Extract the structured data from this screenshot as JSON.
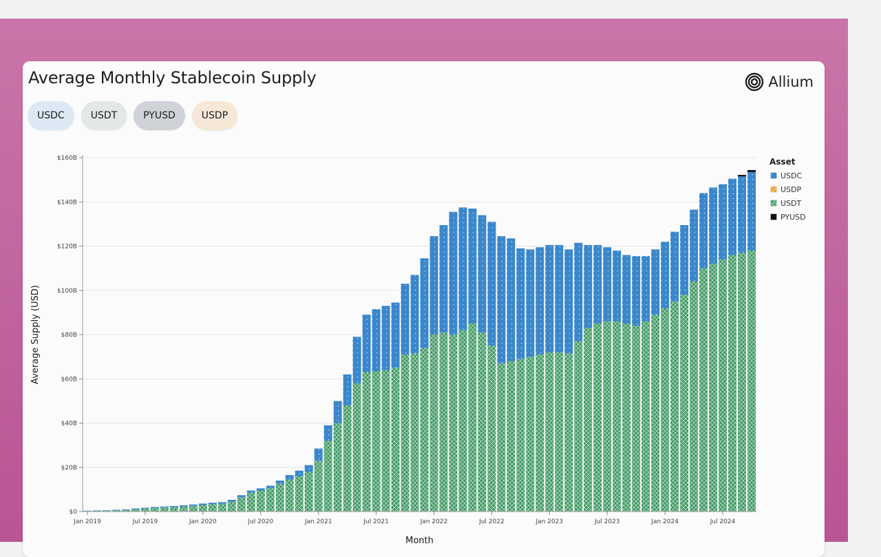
{
  "page": {
    "title": "Average Monthly Stablecoin Supply",
    "brand": "Allium"
  },
  "chips": [
    {
      "label": "USDC",
      "color": "#dce9f4"
    },
    {
      "label": "USDT",
      "color": "#e2e8e4"
    },
    {
      "label": "PYUSD",
      "color": "#cfd3d8"
    },
    {
      "label": "USDP",
      "color": "#f6e7d6"
    }
  ],
  "chart_data": {
    "type": "bar",
    "stacked": true,
    "xlabel": "Month",
    "ylabel": "Average Supply (USD)",
    "ylim": [
      0,
      160
    ],
    "y_ticks": [
      {
        "value": 0,
        "label": "$0"
      },
      {
        "value": 20,
        "label": "$20B"
      },
      {
        "value": 40,
        "label": "$40B"
      },
      {
        "value": 60,
        "label": "$60B"
      },
      {
        "value": 80,
        "label": "$80B"
      },
      {
        "value": 100,
        "label": "$100B"
      },
      {
        "value": 120,
        "label": "$120B"
      },
      {
        "value": 140,
        "label": "$140B"
      },
      {
        "value": 160,
        "label": "$160B"
      }
    ],
    "x_ticks": [
      {
        "index": 0,
        "label": "Jan 2019"
      },
      {
        "index": 6,
        "label": "Jul 2019"
      },
      {
        "index": 12,
        "label": "Jan 2020"
      },
      {
        "index": 18,
        "label": "Jul 2020"
      },
      {
        "index": 24,
        "label": "Jan 2021"
      },
      {
        "index": 30,
        "label": "Jul 2021"
      },
      {
        "index": 36,
        "label": "Jan 2022"
      },
      {
        "index": 42,
        "label": "Jul 2022"
      },
      {
        "index": 48,
        "label": "Jan 2023"
      },
      {
        "index": 54,
        "label": "Jul 2023"
      },
      {
        "index": 60,
        "label": "Jan 2024"
      },
      {
        "index": 66,
        "label": "Jul 2024"
      }
    ],
    "legend": {
      "title": "Asset",
      "position": "right",
      "entries": [
        {
          "name": "USDC",
          "color": "#3a87cc"
        },
        {
          "name": "USDP",
          "color": "#e7a23b"
        },
        {
          "name": "USDT",
          "color": "#3f9a63"
        },
        {
          "name": "PYUSD",
          "color": "#111111"
        }
      ]
    },
    "months": [
      "2019-01",
      "2019-02",
      "2019-03",
      "2019-04",
      "2019-05",
      "2019-06",
      "2019-07",
      "2019-08",
      "2019-09",
      "2019-10",
      "2019-11",
      "2019-12",
      "2020-01",
      "2020-02",
      "2020-03",
      "2020-04",
      "2020-05",
      "2020-06",
      "2020-07",
      "2020-08",
      "2020-09",
      "2020-10",
      "2020-11",
      "2020-12",
      "2021-01",
      "2021-02",
      "2021-03",
      "2021-04",
      "2021-05",
      "2021-06",
      "2021-07",
      "2021-08",
      "2021-09",
      "2021-10",
      "2021-11",
      "2021-12",
      "2022-01",
      "2022-02",
      "2022-03",
      "2022-04",
      "2022-05",
      "2022-06",
      "2022-07",
      "2022-08",
      "2022-09",
      "2022-10",
      "2022-11",
      "2022-12",
      "2023-01",
      "2023-02",
      "2023-03",
      "2023-04",
      "2023-05",
      "2023-06",
      "2023-07",
      "2023-08",
      "2023-09",
      "2023-10",
      "2023-11",
      "2023-12",
      "2024-01",
      "2024-02",
      "2024-03",
      "2024-04",
      "2024-05",
      "2024-06",
      "2024-07",
      "2024-08",
      "2024-09",
      "2024-10"
    ],
    "series": [
      {
        "name": "USDT",
        "color": "#3f9a63",
        "values": [
          0.2,
          0.3,
          0.4,
          0.5,
          0.7,
          1.0,
          1.3,
          1.6,
          1.8,
          2.0,
          2.3,
          2.6,
          3.0,
          3.3,
          3.5,
          4.5,
          6.5,
          8.5,
          9.5,
          10.5,
          12.5,
          14.5,
          16.0,
          18.0,
          23.0,
          32.0,
          40.0,
          48.0,
          58.0,
          63.0,
          63.5,
          64.0,
          65.0,
          71.0,
          71.5,
          74.0,
          80.0,
          81.0,
          80.0,
          82.0,
          85.0,
          81.0,
          75.0,
          67.0,
          68.0,
          69.0,
          70.0,
          71.0,
          72.0,
          72.0,
          71.5,
          77.0,
          83.0,
          85.0,
          86.0,
          86.0,
          85.0,
          84.0,
          86.0,
          89.0,
          92.0,
          95.0,
          98.0,
          104.0,
          110.0,
          112.0,
          114.0,
          116.0,
          117.0,
          118.0
        ]
      },
      {
        "name": "USDC",
        "color": "#3a87cc",
        "values": [
          0.2,
          0.2,
          0.2,
          0.3,
          0.3,
          0.4,
          0.4,
          0.5,
          0.5,
          0.5,
          0.5,
          0.6,
          0.6,
          0.7,
          0.8,
          0.8,
          0.9,
          1.0,
          1.0,
          1.2,
          1.5,
          2.0,
          2.5,
          3.0,
          5.5,
          7.0,
          10.0,
          14.0,
          21.0,
          26.0,
          28.0,
          29.0,
          29.5,
          32.0,
          35.5,
          40.5,
          44.5,
          48.5,
          55.5,
          55.5,
          52.0,
          53.0,
          56.0,
          57.5,
          55.5,
          50.0,
          48.5,
          48.5,
          48.5,
          48.5,
          47.0,
          44.5,
          37.5,
          35.5,
          33.5,
          32.0,
          31.0,
          31.5,
          29.5,
          29.5,
          30.0,
          31.5,
          31.5,
          32.5,
          34.0,
          34.5,
          34.0,
          34.5,
          34.5,
          35.5
        ]
      },
      {
        "name": "USDP",
        "color": "#e7a23b",
        "values": [
          0,
          0,
          0,
          0,
          0,
          0,
          0,
          0,
          0,
          0,
          0,
          0,
          0,
          0,
          0,
          0,
          0,
          0,
          0,
          0,
          0,
          0,
          0,
          0,
          0,
          0,
          0,
          0,
          0,
          0,
          0,
          0,
          0,
          0,
          0,
          0,
          0,
          0,
          0,
          0,
          0,
          0,
          0,
          0,
          0,
          0,
          0,
          0,
          0,
          0,
          0,
          0,
          0,
          0,
          0,
          0,
          0,
          0,
          0,
          0,
          0,
          0,
          0,
          0,
          0,
          0,
          0,
          0,
          0,
          0
        ]
      },
      {
        "name": "PYUSD",
        "color": "#111111",
        "values": [
          0,
          0,
          0,
          0,
          0,
          0,
          0,
          0,
          0,
          0,
          0,
          0,
          0,
          0,
          0,
          0,
          0,
          0,
          0,
          0,
          0,
          0,
          0,
          0,
          0,
          0,
          0,
          0,
          0,
          0,
          0,
          0,
          0,
          0,
          0,
          0,
          0,
          0,
          0,
          0,
          0,
          0,
          0,
          0,
          0,
          0,
          0,
          0,
          0,
          0,
          0,
          0,
          0,
          0,
          0,
          0,
          0,
          0,
          0,
          0,
          0,
          0,
          0,
          0,
          0,
          0,
          0,
          0,
          0.7,
          0.9
        ]
      }
    ]
  }
}
